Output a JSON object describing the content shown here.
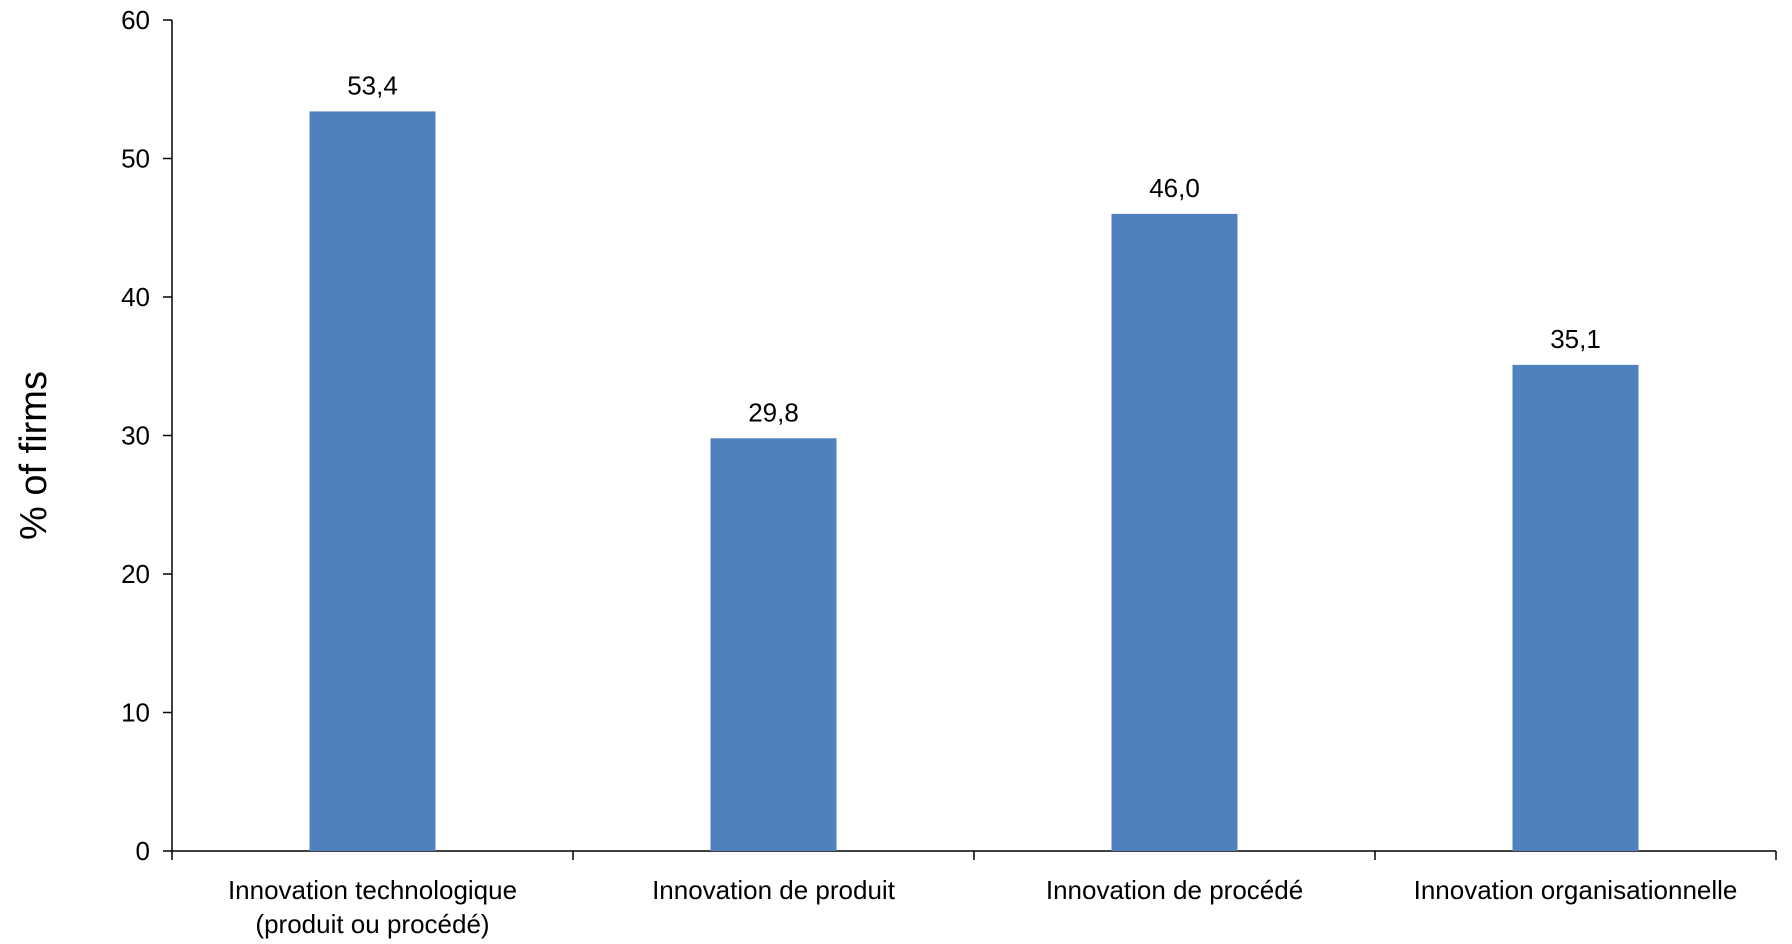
{
  "chart_data": {
    "type": "bar",
    "categories": [
      [
        "Innovation technologique",
        "(produit ou procédé)"
      ],
      [
        "Innovation de produit"
      ],
      [
        "Innovation de procédé"
      ],
      [
        "Innovation organisationnelle"
      ]
    ],
    "values": [
      53.4,
      29.8,
      46.0,
      35.1
    ],
    "value_labels": [
      "53,4",
      "29,8",
      "46,0",
      "35,1"
    ],
    "title": "",
    "xlabel": "",
    "ylabel": "% of firms",
    "ylim": [
      0,
      60
    ],
    "yticks": [
      0,
      10,
      20,
      30,
      40,
      50,
      60
    ],
    "grid": false,
    "legend": "none",
    "bar_color": "#4F81BD"
  }
}
